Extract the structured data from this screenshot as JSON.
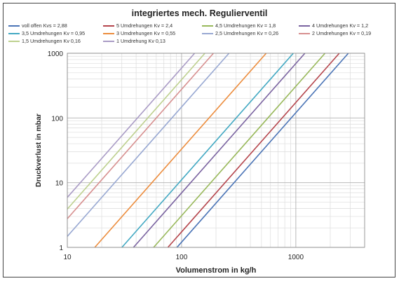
{
  "chart_data": {
    "type": "line",
    "title": "integriertes mech. Regulierventil",
    "xlabel": "Volumenstrom in kg/h",
    "ylabel": "Druckverlust in mbar",
    "xscale": "log",
    "yscale": "log",
    "xlim": [
      10,
      4000
    ],
    "ylim": [
      1,
      1000
    ],
    "xticks": [
      "10",
      "100",
      "1000"
    ],
    "yticks": [
      "1",
      "10",
      "100",
      "1000"
    ],
    "grid": true,
    "legend_position": "top",
    "x_min": [
      10,
      10,
      10,
      10,
      10,
      10,
      10,
      10,
      10,
      10
    ],
    "x_max": [
      3000,
      2500,
      1900,
      1250,
      1000,
      600,
      270,
      210,
      170,
      140
    ],
    "series": [
      {
        "name": "voll offen Kvs = 2,88",
        "color": "#4a74b6",
        "kv": 2.88
      },
      {
        "name": "5 Umdrehungen Kv = 2,4",
        "color": "#b5454c",
        "kv": 2.4
      },
      {
        "name": "4,5 Umdrehungen Kv = 1,8",
        "color": "#98b85a",
        "kv": 1.8
      },
      {
        "name": "4 Umdrehungen Kv = 1,2",
        "color": "#7a63a0",
        "kv": 1.2
      },
      {
        "name": "3,5 Umdrehungen Kv = 0,95",
        "color": "#41a8c2",
        "kv": 0.95
      },
      {
        "name": "3 Umdrehungen Kv = 0,55",
        "color": "#ec8c3c",
        "kv": 0.55
      },
      {
        "name": "2,5 Umdrehungen Kv = 0,26",
        "color": "#98a8d2",
        "kv": 0.26
      },
      {
        "name": "2 Umdrehungen Kv = 0,19",
        "color": "#d78f8f",
        "kv": 0.19
      },
      {
        "name": "1,5 Umdrehungen Kv 0,16",
        "color": "#bdd08e",
        "kv": 0.16
      },
      {
        "name": "1 Umdrehung Kv 0,13",
        "color": "#a99bc5",
        "kv": 0.13
      }
    ]
  }
}
